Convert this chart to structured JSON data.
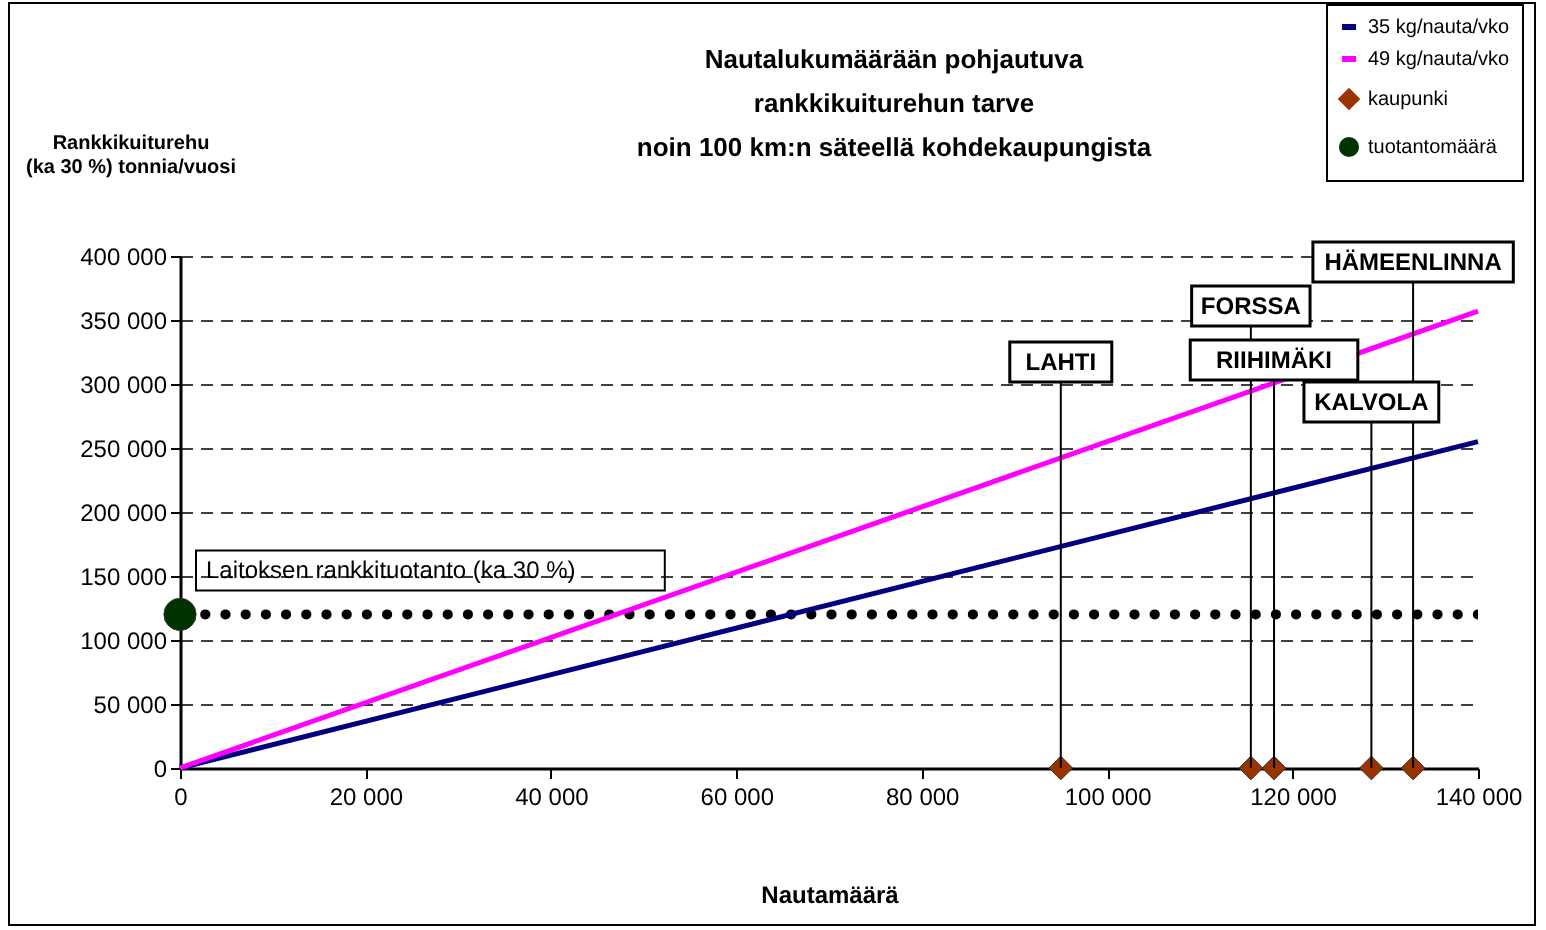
{
  "chart_data": {
    "type": "line",
    "title": "Nautalukumäärään pohjautuva\nrankkikuiturehun tarve\nnoin 100 km:n säteellä kohdekaupungista",
    "xlabel": "Nautamäärä",
    "ylabel": "Rankkikuiturehu\n(ka 30 %) tonnia/vuosi",
    "xlim": [
      0,
      140000
    ],
    "ylim": [
      0,
      400000
    ],
    "xticks": [
      {
        "value": 0,
        "label": "0"
      },
      {
        "value": 20000,
        "label": "20 000"
      },
      {
        "value": 40000,
        "label": "40 000"
      },
      {
        "value": 60000,
        "label": "60 000"
      },
      {
        "value": 80000,
        "label": "80 000"
      },
      {
        "value": 100000,
        "label": "100 000"
      },
      {
        "value": 120000,
        "label": "120 000"
      },
      {
        "value": 140000,
        "label": "140 000"
      }
    ],
    "yticks": [
      {
        "value": 0,
        "label": "0"
      },
      {
        "value": 50000,
        "label": "50 000"
      },
      {
        "value": 100000,
        "label": "100 000"
      },
      {
        "value": 150000,
        "label": "150 000"
      },
      {
        "value": 200000,
        "label": "200 000"
      },
      {
        "value": 250000,
        "label": "250 000"
      },
      {
        "value": 300000,
        "label": "300 000"
      },
      {
        "value": 350000,
        "label": "350 000"
      },
      {
        "value": 400000,
        "label": "400 000"
      }
    ],
    "series": [
      {
        "name": "35 kg/nauta/vko",
        "color": "#000080",
        "marker": "none",
        "x": [
          0,
          140000
        ],
        "values": [
          0,
          255000
        ]
      },
      {
        "name": "49 kg/nauta/vko",
        "color": "#ff00ff",
        "marker": "none",
        "x": [
          0,
          140000
        ],
        "values": [
          0,
          357000
        ]
      },
      {
        "name": "kaupunki",
        "type": "scatter",
        "color": "#993300",
        "marker": "diamond",
        "x": [
          95000,
          115500,
          118000,
          128500,
          133000
        ],
        "values": [
          0,
          0,
          0,
          0,
          0
        ]
      },
      {
        "name": "tuotantomäärä",
        "type": "scatter",
        "color": "#003300",
        "marker": "circle",
        "x": [
          0
        ],
        "values": [
          120000
        ]
      }
    ],
    "ref_lines": [
      {
        "axis": "y",
        "value": 120000,
        "label": "Laitoksen rankkituotanto (ka 30 %)",
        "color": "#000000",
        "line_style": "dotted"
      }
    ],
    "annotations": [
      {
        "text": "LAHTI",
        "x": 95000,
        "y": 0
      },
      {
        "text": "FORSSA",
        "x": 115500,
        "y": 0
      },
      {
        "text": "RIIHIMÄKI",
        "x": 118000,
        "y": 0
      },
      {
        "text": "KALVOLA",
        "x": 128500,
        "y": 0
      },
      {
        "text": "HÄMEENLINNA",
        "x": 133000,
        "y": 0
      }
    ],
    "grid": "y",
    "legend": "top right"
  }
}
